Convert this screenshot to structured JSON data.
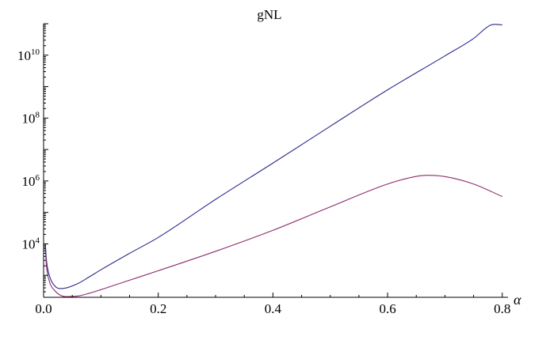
{
  "chart_data": {
    "type": "line",
    "title": "gNL",
    "xlabel": "α",
    "ylabel": "",
    "xlim": [
      0,
      0.81
    ],
    "ylim": [
      200,
      100000000000
    ],
    "y_scale": "log",
    "grid": false,
    "x_ticks": [
      "0.0",
      "0.2",
      "0.4",
      "0.6",
      "0.8"
    ],
    "y_ticks": [
      {
        "base": "10",
        "exp": "4",
        "value": 10000
      },
      {
        "base": "10",
        "exp": "6",
        "value": 1000000
      },
      {
        "base": "10",
        "exp": "8",
        "value": 100000000
      },
      {
        "base": "10",
        "exp": "10",
        "value": 10000000000
      }
    ],
    "series": [
      {
        "color": "#2a2a8c",
        "x": [
          0.003,
          0.005,
          0.01,
          0.02,
          0.03,
          0.04,
          0.06,
          0.08,
          0.1,
          0.15,
          0.2,
          0.3,
          0.4,
          0.5,
          0.6,
          0.7,
          0.75,
          0.78,
          0.8
        ],
        "y": [
          10000,
          3000,
          1000,
          450,
          380,
          400,
          550,
          900,
          1500,
          5000,
          16000,
          260000,
          3700000,
          55000000,
          790000000,
          9500000000,
          34000000000,
          91000000000,
          92000000000
        ]
      },
      {
        "color": "#8b2a6e",
        "x": [
          0.003,
          0.005,
          0.01,
          0.02,
          0.03,
          0.04,
          0.06,
          0.08,
          0.1,
          0.15,
          0.2,
          0.3,
          0.4,
          0.5,
          0.6,
          0.65,
          0.67,
          0.7,
          0.75,
          0.8
        ],
        "y": [
          8000,
          2000,
          650,
          320,
          230,
          210,
          220,
          270,
          350,
          700,
          1400,
          5800,
          27000,
          150000,
          800000,
          1400000,
          1520000,
          1380000,
          800000,
          320000
        ]
      }
    ]
  }
}
